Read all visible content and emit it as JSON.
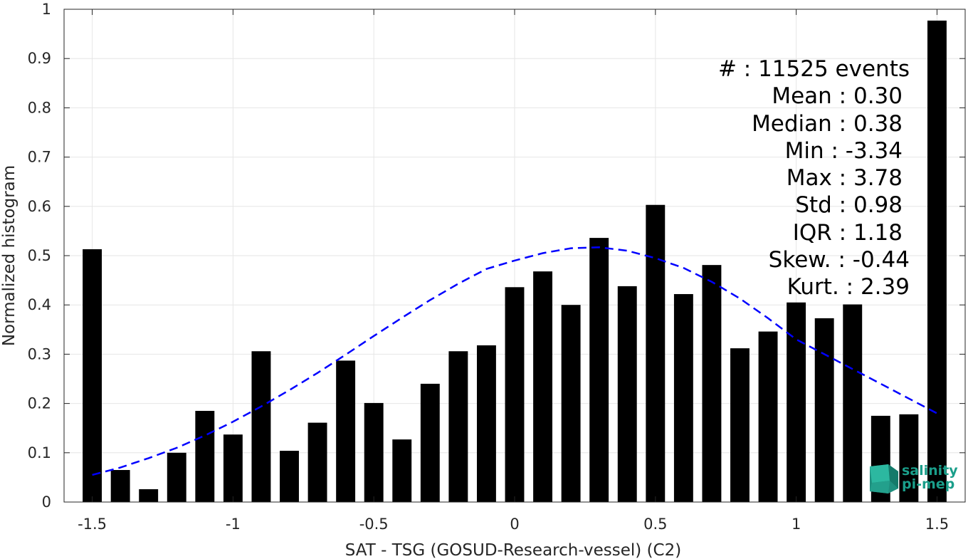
{
  "chart_data": {
    "type": "bar",
    "xlabel": "SAT - TSG (GOSUD-Research-vessel) (C2)",
    "ylabel": "Normalized histogram",
    "xlim": [
      -1.6,
      1.6
    ],
    "ylim": [
      0,
      1
    ],
    "grid": true,
    "x_ticks": [
      -1.5,
      -1,
      -0.5,
      0,
      0.5,
      1,
      1.5
    ],
    "x_tick_labels": [
      "-1.5",
      "-1",
      "-0.5",
      "0",
      "0.5",
      "1",
      "1.5"
    ],
    "y_ticks": [
      0,
      0.1,
      0.2,
      0.3,
      0.4,
      0.5,
      0.6,
      0.7,
      0.8,
      0.9,
      1
    ],
    "y_tick_labels": [
      "0",
      "0.1",
      "0.2",
      "0.3",
      "0.4",
      "0.5",
      "0.6",
      "0.7",
      "0.8",
      "0.9",
      "1"
    ],
    "bar_color": "#000000",
    "bars": [
      {
        "x": -1.5,
        "y": 0.513
      },
      {
        "x": -1.4,
        "y": 0.065
      },
      {
        "x": -1.3,
        "y": 0.026
      },
      {
        "x": -1.2,
        "y": 0.1
      },
      {
        "x": -1.1,
        "y": 0.185
      },
      {
        "x": -1.0,
        "y": 0.137
      },
      {
        "x": -0.9,
        "y": 0.306
      },
      {
        "x": -0.8,
        "y": 0.104
      },
      {
        "x": -0.7,
        "y": 0.161
      },
      {
        "x": -0.6,
        "y": 0.287
      },
      {
        "x": -0.5,
        "y": 0.201
      },
      {
        "x": -0.4,
        "y": 0.127
      },
      {
        "x": -0.3,
        "y": 0.24
      },
      {
        "x": -0.2,
        "y": 0.306
      },
      {
        "x": -0.1,
        "y": 0.318
      },
      {
        "x": 0.0,
        "y": 0.436
      },
      {
        "x": 0.1,
        "y": 0.468
      },
      {
        "x": 0.2,
        "y": 0.4
      },
      {
        "x": 0.3,
        "y": 0.536
      },
      {
        "x": 0.4,
        "y": 0.438
      },
      {
        "x": 0.5,
        "y": 0.603
      },
      {
        "x": 0.6,
        "y": 0.422
      },
      {
        "x": 0.7,
        "y": 0.481
      },
      {
        "x": 0.8,
        "y": 0.312
      },
      {
        "x": 0.9,
        "y": 0.346
      },
      {
        "x": 1.0,
        "y": 0.405
      },
      {
        "x": 1.1,
        "y": 0.373
      },
      {
        "x": 1.2,
        "y": 0.401
      },
      {
        "x": 1.3,
        "y": 0.175
      },
      {
        "x": 1.4,
        "y": 0.178
      },
      {
        "x": 1.5,
        "y": 0.977
      }
    ],
    "fit_curve": {
      "style": "dashed",
      "color": "#0000ff",
      "x": [
        -1.5,
        -1.4,
        -1.3,
        -1.2,
        -1.1,
        -1.0,
        -0.9,
        -0.8,
        -0.7,
        -0.6,
        -0.5,
        -0.4,
        -0.3,
        -0.2,
        -0.1,
        0.0,
        0.1,
        0.2,
        0.3,
        0.4,
        0.5,
        0.6,
        0.7,
        0.8,
        0.9,
        1.0,
        1.1,
        1.2,
        1.3,
        1.4,
        1.5
      ],
      "y": [
        0.055,
        0.07,
        0.089,
        0.11,
        0.135,
        0.163,
        0.194,
        0.227,
        0.262,
        0.299,
        0.337,
        0.374,
        0.41,
        0.443,
        0.473,
        0.49,
        0.505,
        0.515,
        0.517,
        0.51,
        0.495,
        0.475,
        0.447,
        0.413,
        0.373,
        0.33,
        0.3,
        0.27,
        0.24,
        0.21,
        0.18
      ]
    },
    "annotations": [
      "#  : 11525 events",
      "Mean : 0.30",
      "Median : 0.38",
      "Min : -3.34",
      "Max : 3.78",
      "Std : 0.98",
      "IQR : 1.18",
      "Skew. : -0.44",
      "Kurt. : 2.39"
    ],
    "logo": {
      "line1": "salinity",
      "line2": "pi-mep",
      "color": "#1a9e8a"
    }
  }
}
